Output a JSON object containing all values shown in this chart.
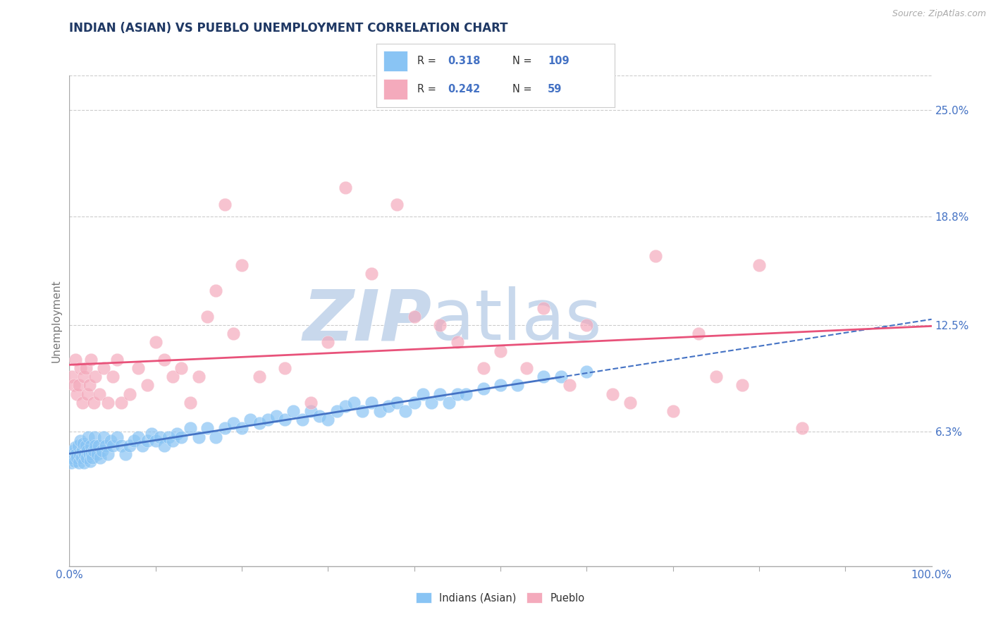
{
  "title": "INDIAN (ASIAN) VS PUEBLO UNEMPLOYMENT CORRELATION CHART",
  "source_text": "Source: ZipAtlas.com",
  "ylabel": "Unemployment",
  "xlim": [
    0,
    100
  ],
  "ylim_bottom": -1.5,
  "ylim_top": 27,
  "ytick_labels": [
    "6.3%",
    "12.5%",
    "18.8%",
    "25.0%"
  ],
  "ytick_values": [
    6.3,
    12.5,
    18.8,
    25.0
  ],
  "xtick_labels": [
    "0.0%",
    "100.0%"
  ],
  "color_indian": "#89C4F4",
  "color_pueblo": "#F4AABC",
  "color_indian_line": "#4472C4",
  "color_pueblo_line": "#E8527A",
  "watermark_zip": "ZIP",
  "watermark_atlas": "atlas",
  "watermark_color_zip": "#C8D8EC",
  "watermark_color_atlas": "#C8D8EC",
  "background_color": "#FFFFFF",
  "grid_color": "#CCCCCC",
  "title_color": "#1F3864",
  "label_color": "#4472C4",
  "legend_box_color": "#EEEEEE",
  "indian_x": [
    0.2,
    0.3,
    0.4,
    0.5,
    0.6,
    0.7,
    0.8,
    0.9,
    1.0,
    1.1,
    1.2,
    1.3,
    1.4,
    1.5,
    1.6,
    1.7,
    1.8,
    1.9,
    2.0,
    2.1,
    2.2,
    2.3,
    2.4,
    2.5,
    2.6,
    2.7,
    2.8,
    2.9,
    3.0,
    3.2,
    3.4,
    3.6,
    3.8,
    4.0,
    4.2,
    4.5,
    4.8,
    5.0,
    5.5,
    6.0,
    6.5,
    7.0,
    7.5,
    8.0,
    8.5,
    9.0,
    9.5,
    10.0,
    10.5,
    11.0,
    11.5,
    12.0,
    12.5,
    13.0,
    14.0,
    15.0,
    16.0,
    17.0,
    18.0,
    19.0,
    20.0,
    21.0,
    22.0,
    23.0,
    24.0,
    25.0,
    26.0,
    27.0,
    28.0,
    29.0,
    30.0,
    31.0,
    32.0,
    33.0,
    34.0,
    35.0,
    36.0,
    37.0,
    38.0,
    39.0,
    40.0,
    41.0,
    42.0,
    43.0,
    44.0,
    45.0,
    46.0,
    48.0,
    50.0,
    52.0,
    55.0,
    57.0,
    60.0
  ],
  "indian_y": [
    4.5,
    4.8,
    5.0,
    5.2,
    4.6,
    5.4,
    5.0,
    4.8,
    5.5,
    4.5,
    5.0,
    5.8,
    4.8,
    5.2,
    5.6,
    4.5,
    5.0,
    5.5,
    4.8,
    5.2,
    6.0,
    5.0,
    4.6,
    5.5,
    5.0,
    4.8,
    5.2,
    6.0,
    5.5,
    5.0,
    5.5,
    4.8,
    5.2,
    6.0,
    5.5,
    5.0,
    5.8,
    5.5,
    6.0,
    5.5,
    5.0,
    5.5,
    5.8,
    6.0,
    5.5,
    5.8,
    6.2,
    5.8,
    6.0,
    5.5,
    6.0,
    5.8,
    6.2,
    6.0,
    6.5,
    6.0,
    6.5,
    6.0,
    6.5,
    6.8,
    6.5,
    7.0,
    6.8,
    7.0,
    7.2,
    7.0,
    7.5,
    7.0,
    7.5,
    7.2,
    7.0,
    7.5,
    7.8,
    8.0,
    7.5,
    8.0,
    7.5,
    7.8,
    8.0,
    7.5,
    8.0,
    8.5,
    8.0,
    8.5,
    8.0,
    8.5,
    8.5,
    8.8,
    9.0,
    9.0,
    9.5,
    9.5,
    9.8
  ],
  "pueblo_x": [
    0.3,
    0.5,
    0.7,
    0.9,
    1.1,
    1.3,
    1.5,
    1.7,
    1.9,
    2.1,
    2.3,
    2.5,
    2.8,
    3.0,
    3.5,
    4.0,
    4.5,
    5.0,
    5.5,
    6.0,
    7.0,
    8.0,
    9.0,
    10.0,
    11.0,
    12.0,
    13.0,
    14.0,
    15.0,
    16.0,
    17.0,
    18.0,
    19.0,
    20.0,
    22.0,
    25.0,
    28.0,
    30.0,
    32.0,
    35.0,
    38.0,
    40.0,
    43.0,
    45.0,
    48.0,
    50.0,
    53.0,
    55.0,
    58.0,
    60.0,
    63.0,
    65.0,
    68.0,
    70.0,
    73.0,
    75.0,
    78.0,
    80.0,
    85.0
  ],
  "pueblo_y": [
    9.5,
    9.0,
    10.5,
    8.5,
    9.0,
    10.0,
    8.0,
    9.5,
    10.0,
    8.5,
    9.0,
    10.5,
    8.0,
    9.5,
    8.5,
    10.0,
    8.0,
    9.5,
    10.5,
    8.0,
    8.5,
    10.0,
    9.0,
    11.5,
    10.5,
    9.5,
    10.0,
    8.0,
    9.5,
    13.0,
    14.5,
    19.5,
    12.0,
    16.0,
    9.5,
    10.0,
    8.0,
    11.5,
    20.5,
    15.5,
    19.5,
    13.0,
    12.5,
    11.5,
    10.0,
    11.0,
    10.0,
    13.5,
    9.0,
    12.5,
    8.5,
    8.0,
    16.5,
    7.5,
    12.0,
    9.5,
    9.0,
    16.0,
    6.5
  ]
}
